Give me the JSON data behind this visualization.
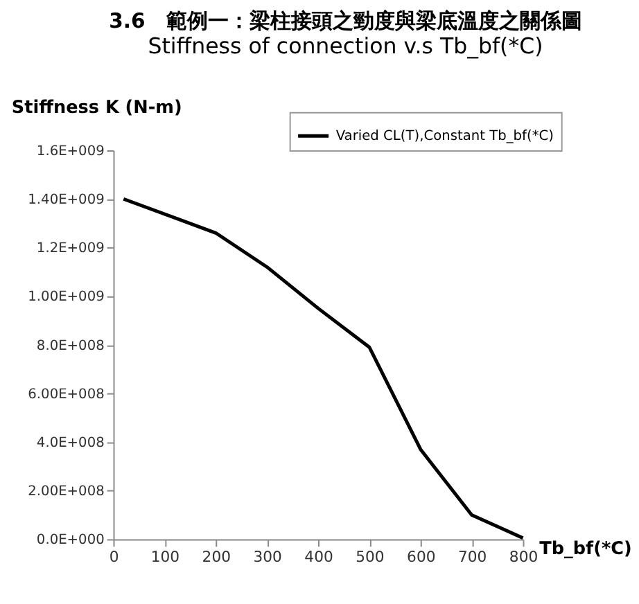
{
  "chart_data": {
    "type": "line",
    "title": "3.6　範例一：梁柱接頭之勁度與梁底溫度之關係圖",
    "subtitle": "Stiffness of connection v.s  Tb_bf(*C)",
    "xlabel": "Tb_bf(*C)",
    "ylabel": "Stiffness K (N-m)",
    "x": [
      20,
      200,
      300,
      400,
      500,
      600,
      700,
      800
    ],
    "series": [
      {
        "name": "Varied CL(T),Constant Tb_bf(*C)",
        "color": "#000000",
        "values": [
          1400000000.0,
          1260000000.0,
          1120000000.0,
          950000000.0,
          790000000.0,
          370000000.0,
          100000000.0,
          5000000.0
        ]
      }
    ],
    "xlim": [
      0,
      800
    ],
    "xticks": [
      0,
      100,
      200,
      300,
      400,
      500,
      600,
      700,
      800
    ],
    "ylim": [
      0,
      1600000000.0
    ],
    "yticks": [
      {
        "value": 0,
        "label": "0.0E+000"
      },
      {
        "value": 200000000.0,
        "label": "2.00E+008"
      },
      {
        "value": 400000000.0,
        "label": "4.0E+008"
      },
      {
        "value": 600000000.0,
        "label": "6.00E+008"
      },
      {
        "value": 800000000.0,
        "label": "8.0E+008"
      },
      {
        "value": 1000000000.0,
        "label": "1.00E+009"
      },
      {
        "value": 1200000000.0,
        "label": "1.2E+009"
      },
      {
        "value": 1400000000.0,
        "label": "1.40E+009"
      },
      {
        "value": 1600000000.0,
        "label": "1.6E+009"
      }
    ],
    "grid": false,
    "legend": "top right",
    "marker": "none",
    "line_style": "solid"
  }
}
